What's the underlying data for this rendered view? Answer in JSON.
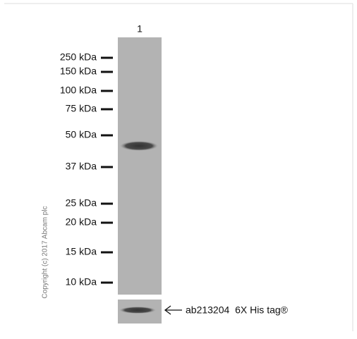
{
  "lanes": [
    "1"
  ],
  "markers": [
    "250 kDa",
    "150 kDa",
    "100 kDa",
    "75 kDa",
    "50 kDa",
    "37 kDa",
    "25 kDa",
    "20 kDa",
    "15 kDa",
    "10 kDa"
  ],
  "copyright": "Copyright (c) 2017 Abcam plc",
  "annotation": "ab213204  6X His tag®"
}
